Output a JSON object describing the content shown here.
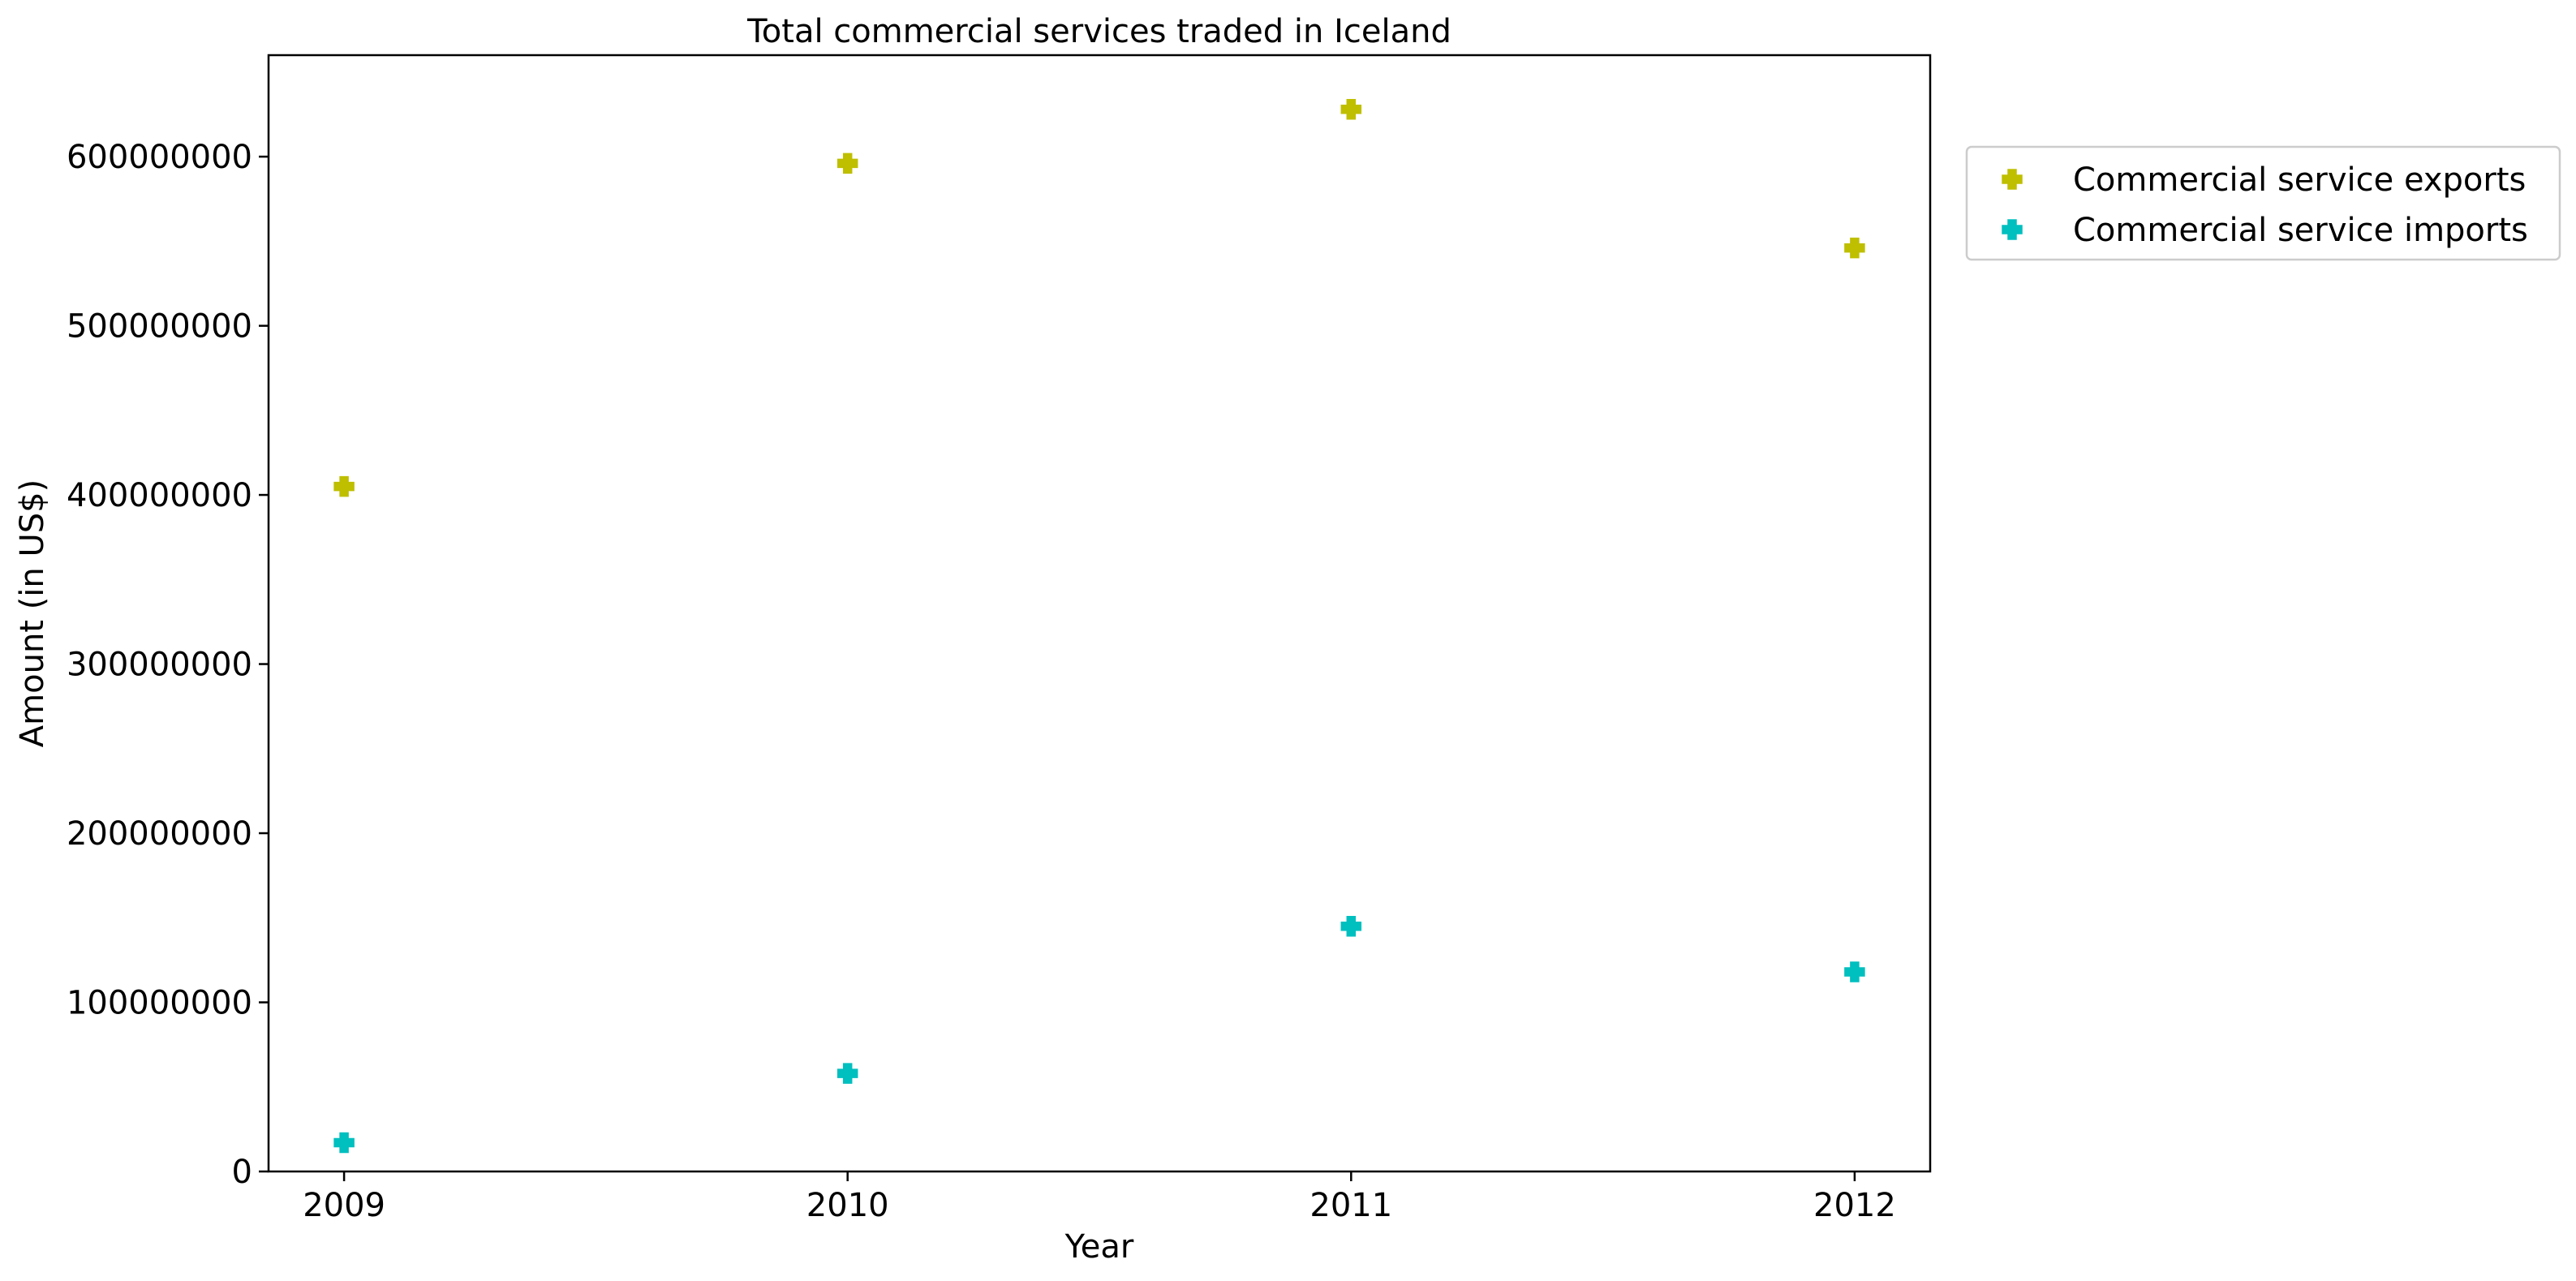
{
  "chart_data": {
    "type": "scatter",
    "title": "Total commercial services traded in Iceland",
    "xlabel": "Year",
    "ylabel": "Amount (in US$)",
    "x": [
      2009,
      2010,
      2011,
      2012
    ],
    "x_tick_labels": [
      "2009",
      "2010",
      "2011",
      "2012"
    ],
    "xlim": [
      2008.85,
      2012.15
    ],
    "ylim": [
      0,
      660000000
    ],
    "y_ticks": [
      0,
      100000000,
      200000000,
      300000000,
      400000000,
      500000000,
      600000000
    ],
    "y_tick_labels": [
      "0",
      "100000000",
      "200000000",
      "300000000",
      "400000000",
      "500000000",
      "600000000"
    ],
    "grid": false,
    "legend_placement": "outside-top-right",
    "marker": "plus",
    "series": [
      {
        "name": "Commercial service exports",
        "color": "#bfbf00",
        "values": [
          405000000,
          596000000,
          628000000,
          546000000
        ]
      },
      {
        "name": "Commercial service imports",
        "color": "#00bfbf",
        "values": [
          17000000,
          58000000,
          145000000,
          118000000
        ]
      }
    ]
  }
}
